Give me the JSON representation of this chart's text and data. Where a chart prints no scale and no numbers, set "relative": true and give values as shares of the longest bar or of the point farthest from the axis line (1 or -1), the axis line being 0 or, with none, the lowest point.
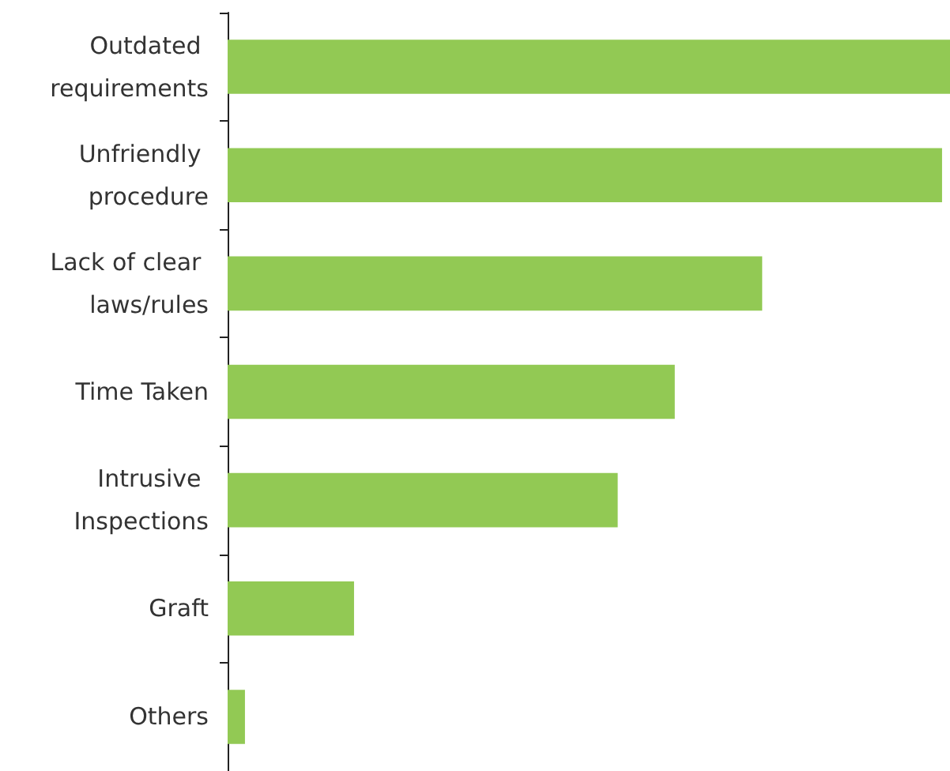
{
  "chart_data": {
    "type": "bar",
    "orientation": "horizontal",
    "relative": true,
    "categories": [
      "Outdated requirements",
      "Unfriendly procedure",
      "Lack of clear laws/rules",
      "Time Taken",
      "Intrusive Inspections",
      "Graft",
      "Others"
    ],
    "values": [
      1,
      0.989,
      0.74,
      0.619,
      0.54,
      0.175,
      0.024
    ],
    "color": "#92c954"
  }
}
